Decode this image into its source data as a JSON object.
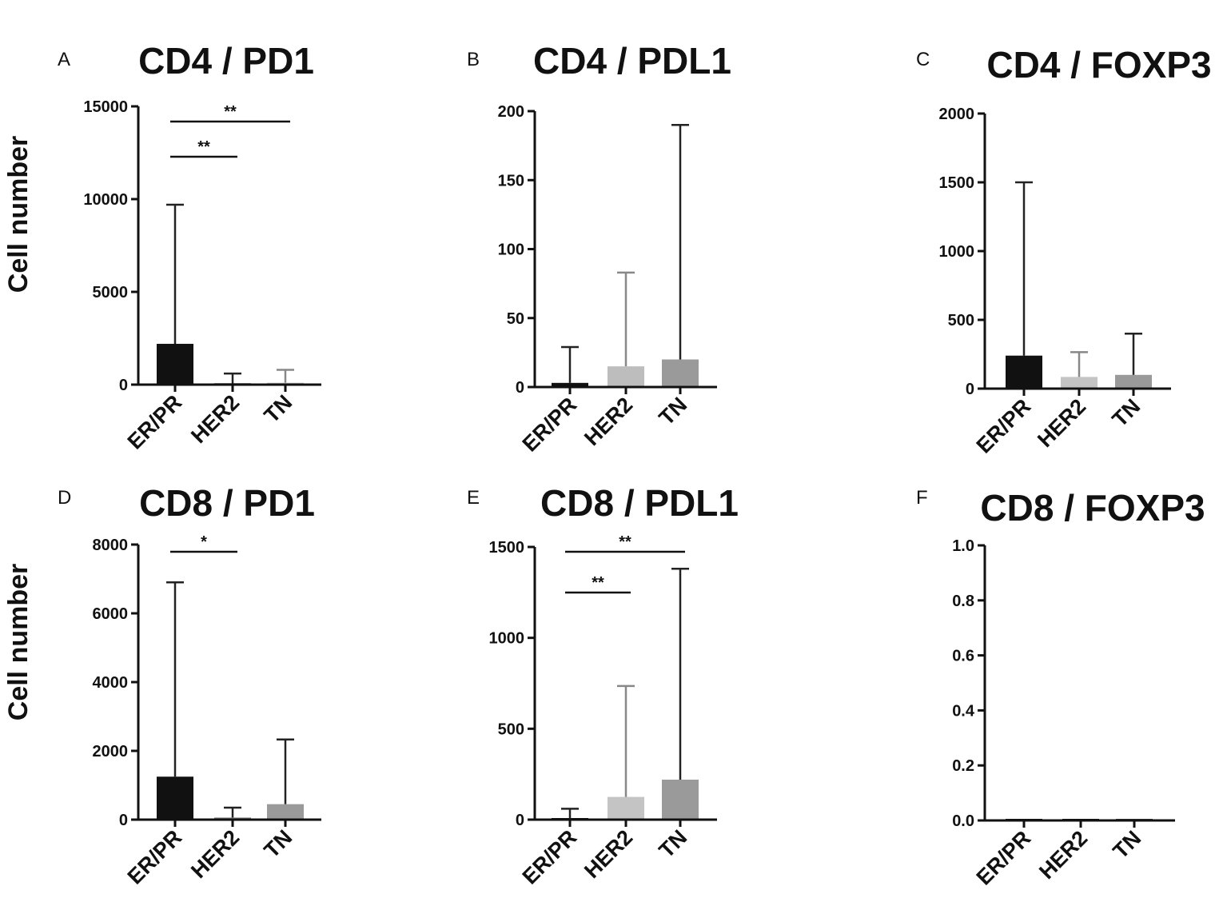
{
  "chart_data": [
    {
      "type": "bar",
      "panel": "A",
      "title": "CD4 / PD1",
      "ylabel": "Cell number",
      "categories": [
        "ER/PR",
        "HER2",
        "TN"
      ],
      "values": [
        2200,
        60,
        100
      ],
      "error_upper": [
        9700,
        600,
        800
      ],
      "bar_colors": [
        "#111111",
        "#9a9a9a",
        "#bdbdbd"
      ],
      "ylim": [
        0,
        15000
      ],
      "yticks": [
        0,
        5000,
        10000,
        15000
      ],
      "ytick_labels": [
        "0",
        "5000",
        "10000",
        "15000"
      ],
      "significance": [
        {
          "from": 0,
          "to": 2,
          "y": 12700,
          "label": "**"
        },
        {
          "from": 0,
          "to": 1,
          "y": 12300,
          "label": "**"
        }
      ]
    },
    {
      "type": "bar",
      "panel": "B",
      "title": "CD4 / PDL1",
      "ylabel": "",
      "categories": [
        "ER/PR",
        "HER2",
        "TN"
      ],
      "values": [
        3,
        15,
        20
      ],
      "error_upper": [
        29,
        83,
        190
      ],
      "bar_colors": [
        "#111111",
        "#bdbdbd",
        "#9a9a9a"
      ],
      "ylim": [
        0,
        200
      ],
      "yticks": [
        0,
        50,
        100,
        150,
        200
      ],
      "ytick_labels": [
        "0",
        "50",
        "100",
        "150",
        "200"
      ],
      "significance": []
    },
    {
      "type": "bar",
      "panel": "C",
      "title": "CD4 / FOXP3",
      "ylabel": "",
      "categories": [
        "ER/PR",
        "HER2",
        "TN"
      ],
      "values": [
        240,
        85,
        100
      ],
      "error_upper": [
        1500,
        265,
        400
      ],
      "bar_colors": [
        "#111111",
        "#c4c4c4",
        "#9a9a9a"
      ],
      "ylim": [
        0,
        2000
      ],
      "yticks": [
        0,
        500,
        1000,
        1500,
        2000
      ],
      "ytick_labels": [
        "0",
        "500",
        "1000",
        "1500",
        "2000"
      ],
      "significance": []
    },
    {
      "type": "bar",
      "panel": "D",
      "title": "CD8 / PD1",
      "ylabel": "Cell number",
      "categories": [
        "ER/PR",
        "HER2",
        "TN"
      ],
      "values": [
        1250,
        60,
        450
      ],
      "error_upper": [
        6900,
        350,
        2330
      ],
      "bar_colors": [
        "#111111",
        "#7a7a7a",
        "#9a9a9a"
      ],
      "ylim": [
        0,
        8000
      ],
      "yticks": [
        0,
        2000,
        4000,
        6000,
        8000
      ],
      "ytick_labels": [
        "0",
        "2000",
        "4000",
        "6000",
        "8000"
      ],
      "significance": [
        {
          "from": 0,
          "to": 1,
          "y": 7950,
          "label": "*"
        }
      ]
    },
    {
      "type": "bar",
      "panel": "E",
      "title": "CD8 / PDL1",
      "ylabel": "",
      "categories": [
        "ER/PR",
        "HER2",
        "TN"
      ],
      "values": [
        5,
        125,
        220
      ],
      "error_upper": [
        60,
        735,
        1380
      ],
      "bar_colors": [
        "#111111",
        "#c4c4c4",
        "#9a9a9a"
      ],
      "ylim": [
        0,
        1500
      ],
      "yticks": [
        0,
        500,
        1000,
        1500
      ],
      "ytick_labels": [
        "0",
        "500",
        "1000",
        "1500"
      ],
      "significance": [
        {
          "from": 0,
          "to": 2,
          "y": 1500,
          "label": "**"
        },
        {
          "from": 0,
          "to": 1,
          "y": 1250,
          "label": "**"
        }
      ]
    },
    {
      "type": "bar",
      "panel": "F",
      "title": "CD8 / FOXP3",
      "ylabel": "",
      "categories": [
        "ER/PR",
        "HER2",
        "TN"
      ],
      "values": [
        0.005,
        0.005,
        0.003
      ],
      "error_upper": [
        0.005,
        0.005,
        0.003
      ],
      "bar_colors": [
        "#111111",
        "#111111",
        "#444444"
      ],
      "ylim": [
        0,
        1.0
      ],
      "yticks": [
        0,
        0.2,
        0.4,
        0.6,
        0.8,
        1.0
      ],
      "ytick_labels": [
        "0.0",
        "0.2",
        "0.4",
        "0.6",
        "0.8",
        "1.0"
      ],
      "significance": []
    }
  ]
}
